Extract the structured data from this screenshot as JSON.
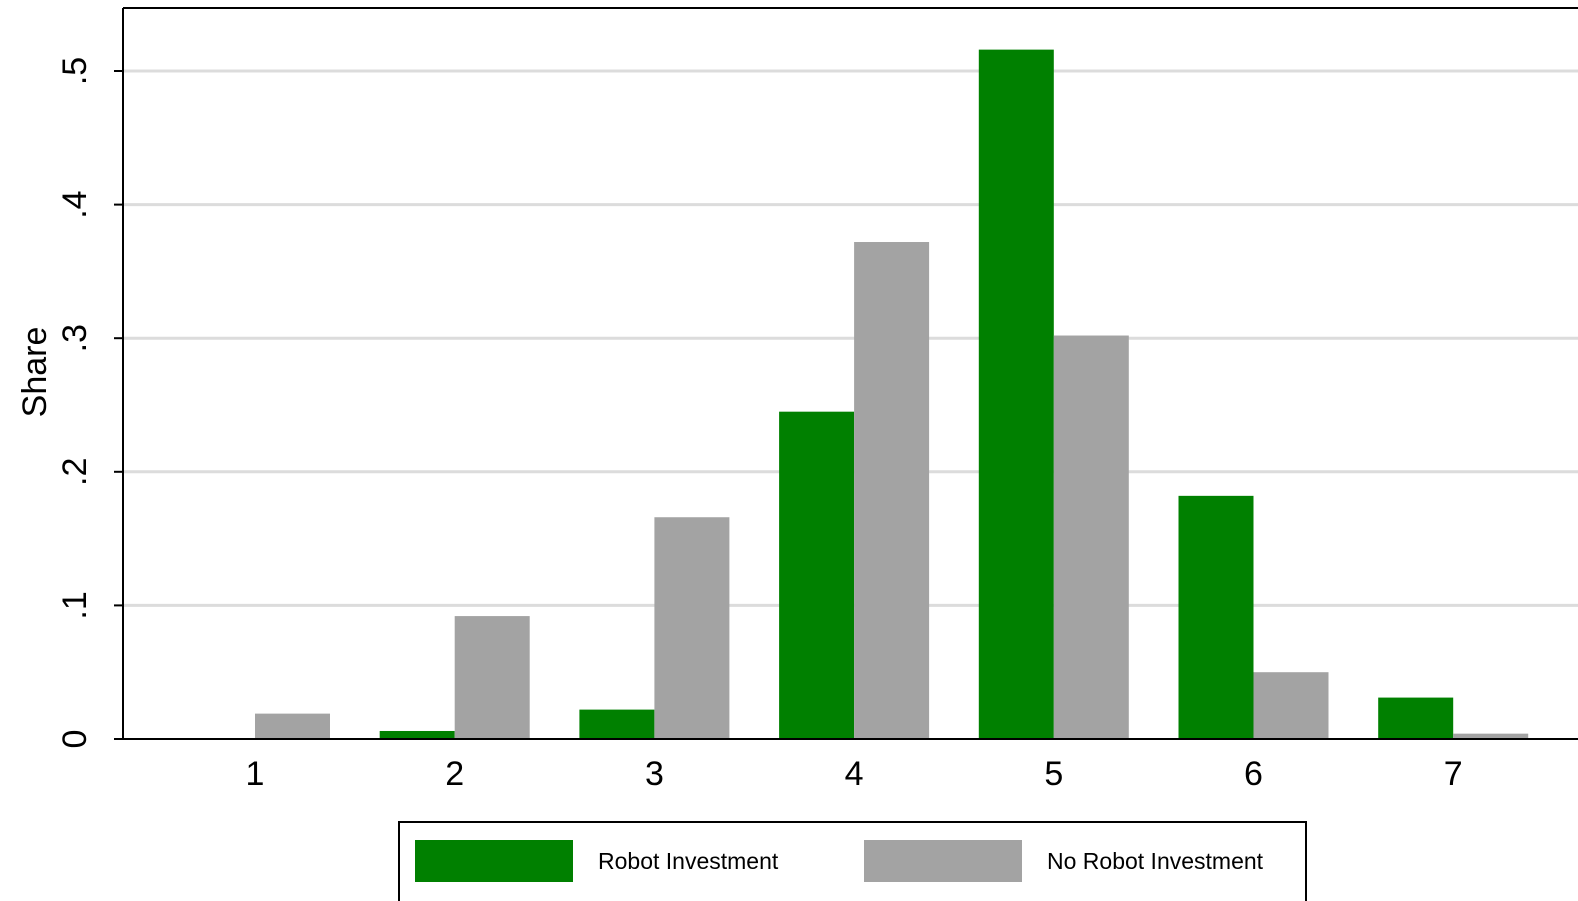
{
  "chart_data": {
    "type": "bar",
    "title": "",
    "xlabel": "",
    "ylabel": "Share",
    "categories": [
      "1",
      "2",
      "3",
      "4",
      "5",
      "6",
      "7"
    ],
    "series": [
      {
        "name": "Robot Investment",
        "color": "#008000",
        "values": [
          0.0,
          0.006,
          0.022,
          0.245,
          0.516,
          0.182,
          0.031
        ]
      },
      {
        "name": "No Robot Investment",
        "color": "#a3a3a3",
        "values": [
          0.019,
          0.092,
          0.166,
          0.372,
          0.302,
          0.05,
          0.004
        ]
      }
    ],
    "ylim": [
      0,
      0.5
    ],
    "yticks": [
      0,
      0.1,
      0.2,
      0.3,
      0.4,
      0.5
    ],
    "ytick_labels": [
      "0",
      ".1",
      ".2",
      ".3",
      ".4",
      ".5"
    ],
    "grid": true,
    "legend_position": "bottom"
  }
}
